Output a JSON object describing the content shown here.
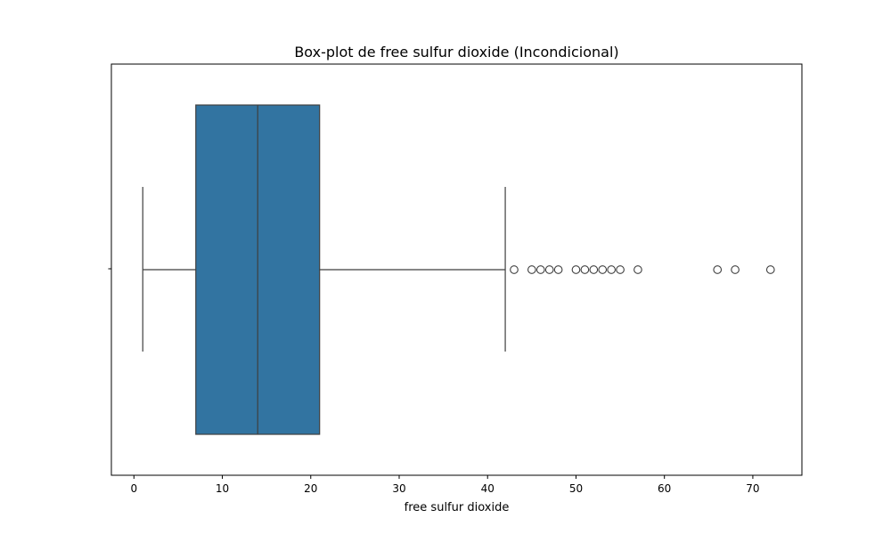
{
  "chart_data": {
    "type": "boxplot",
    "title": "Box-plot de free sulfur dioxide (Incondicional)",
    "xlabel": "free sulfur dioxide",
    "ylabel": "",
    "orientation": "horizontal",
    "xlim": [
      -2.55,
      75.55
    ],
    "xticks": [
      0,
      10,
      20,
      30,
      40,
      50,
      60,
      70
    ],
    "box": {
      "whisker_low": 1,
      "q1": 7,
      "median": 14,
      "q3": 21,
      "whisker_high": 42,
      "outliers": [
        43,
        45,
        46,
        47,
        48,
        50,
        51,
        52,
        53,
        54,
        55,
        57,
        66,
        68,
        72
      ]
    },
    "box_color": "#3274a1",
    "line_color": "#3f3f3f",
    "grid": false,
    "legend": "none"
  }
}
